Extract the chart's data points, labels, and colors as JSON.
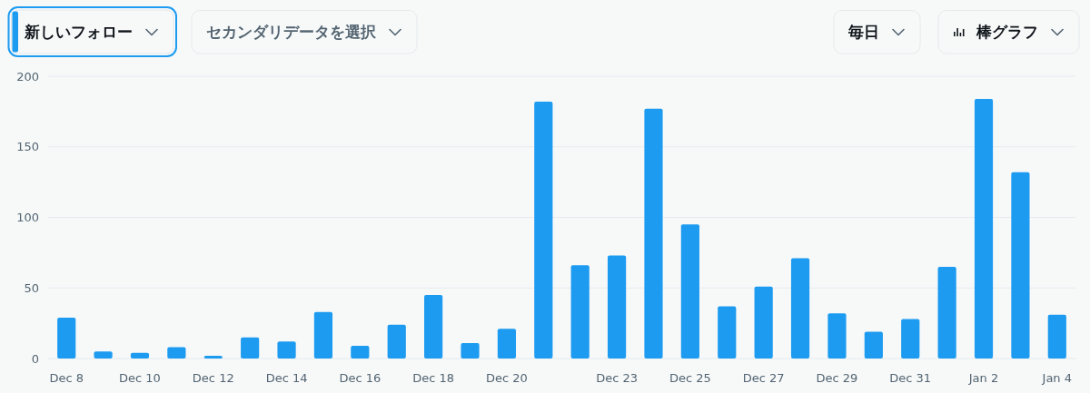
{
  "chart_data": {
    "type": "bar",
    "title": "新しいフォロー",
    "annotations": [
      "セカンダリデータを選択",
      "毎日",
      "棒グラフ"
    ],
    "categories": [
      "Dec 8",
      null,
      "Dec 10",
      null,
      "Dec 12",
      null,
      "Dec 14",
      null,
      "Dec 16",
      null,
      "Dec 18",
      null,
      "Dec 20",
      null,
      null,
      "Dec 23",
      null,
      "Dec 25",
      null,
      "Dec 27",
      null,
      "Dec 29",
      null,
      "Dec 31",
      null,
      "Jan 2",
      null,
      "Jan 4"
    ],
    "values": [
      29,
      5,
      4,
      8,
      2,
      15,
      12,
      33,
      9,
      24,
      45,
      11,
      21,
      182,
      66,
      73,
      177,
      95,
      37,
      51,
      71,
      32,
      19,
      28,
      65,
      184,
      132,
      31
    ],
    "color": "#1d9bf0",
    "ylim": [
      0,
      200
    ],
    "yticks": [
      0,
      50,
      100,
      150,
      200
    ],
    "grid": "y"
  }
}
